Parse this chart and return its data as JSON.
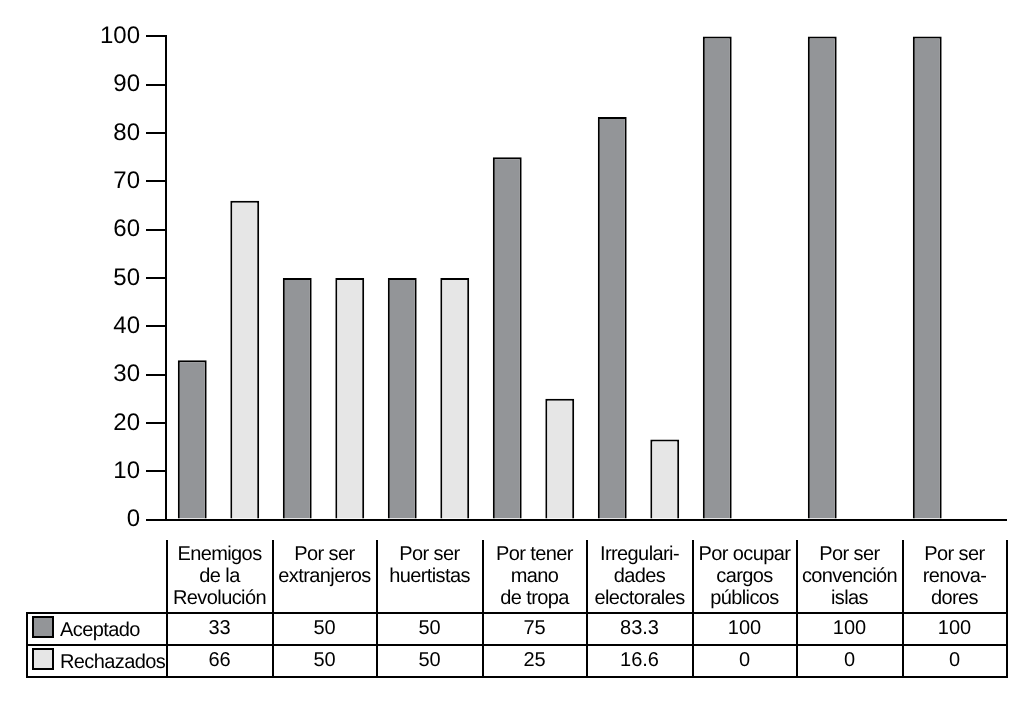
{
  "chart_data": {
    "type": "bar",
    "categories": [
      "Enemigos\nde la\nRevolución",
      "Por ser\nextranjeros",
      "Por ser\nhuertistas",
      "Por tener\nmano\nde tropa",
      "Irregulari-\ndades\nelectorales",
      "Por ocupar\ncargos\npúblicos",
      "Por ser\nconvención\nislas",
      "Por ser\nrenova-\ndores"
    ],
    "series": [
      {
        "name": "Aceptado",
        "color": "#939598",
        "values": [
          33,
          50,
          50,
          75,
          83.3,
          100,
          100,
          100
        ]
      },
      {
        "name": "Rechazados",
        "color": "#e6e6e6",
        "values": [
          66,
          50,
          50,
          25,
          16.6,
          0,
          0,
          0
        ]
      }
    ],
    "ylim": [
      0,
      100
    ],
    "yticks": [
      0,
      10,
      20,
      30,
      40,
      50,
      60,
      70,
      80,
      90,
      100
    ],
    "grid": false,
    "legend": "bottom",
    "data_labels": true,
    "tick_labels": "y"
  }
}
